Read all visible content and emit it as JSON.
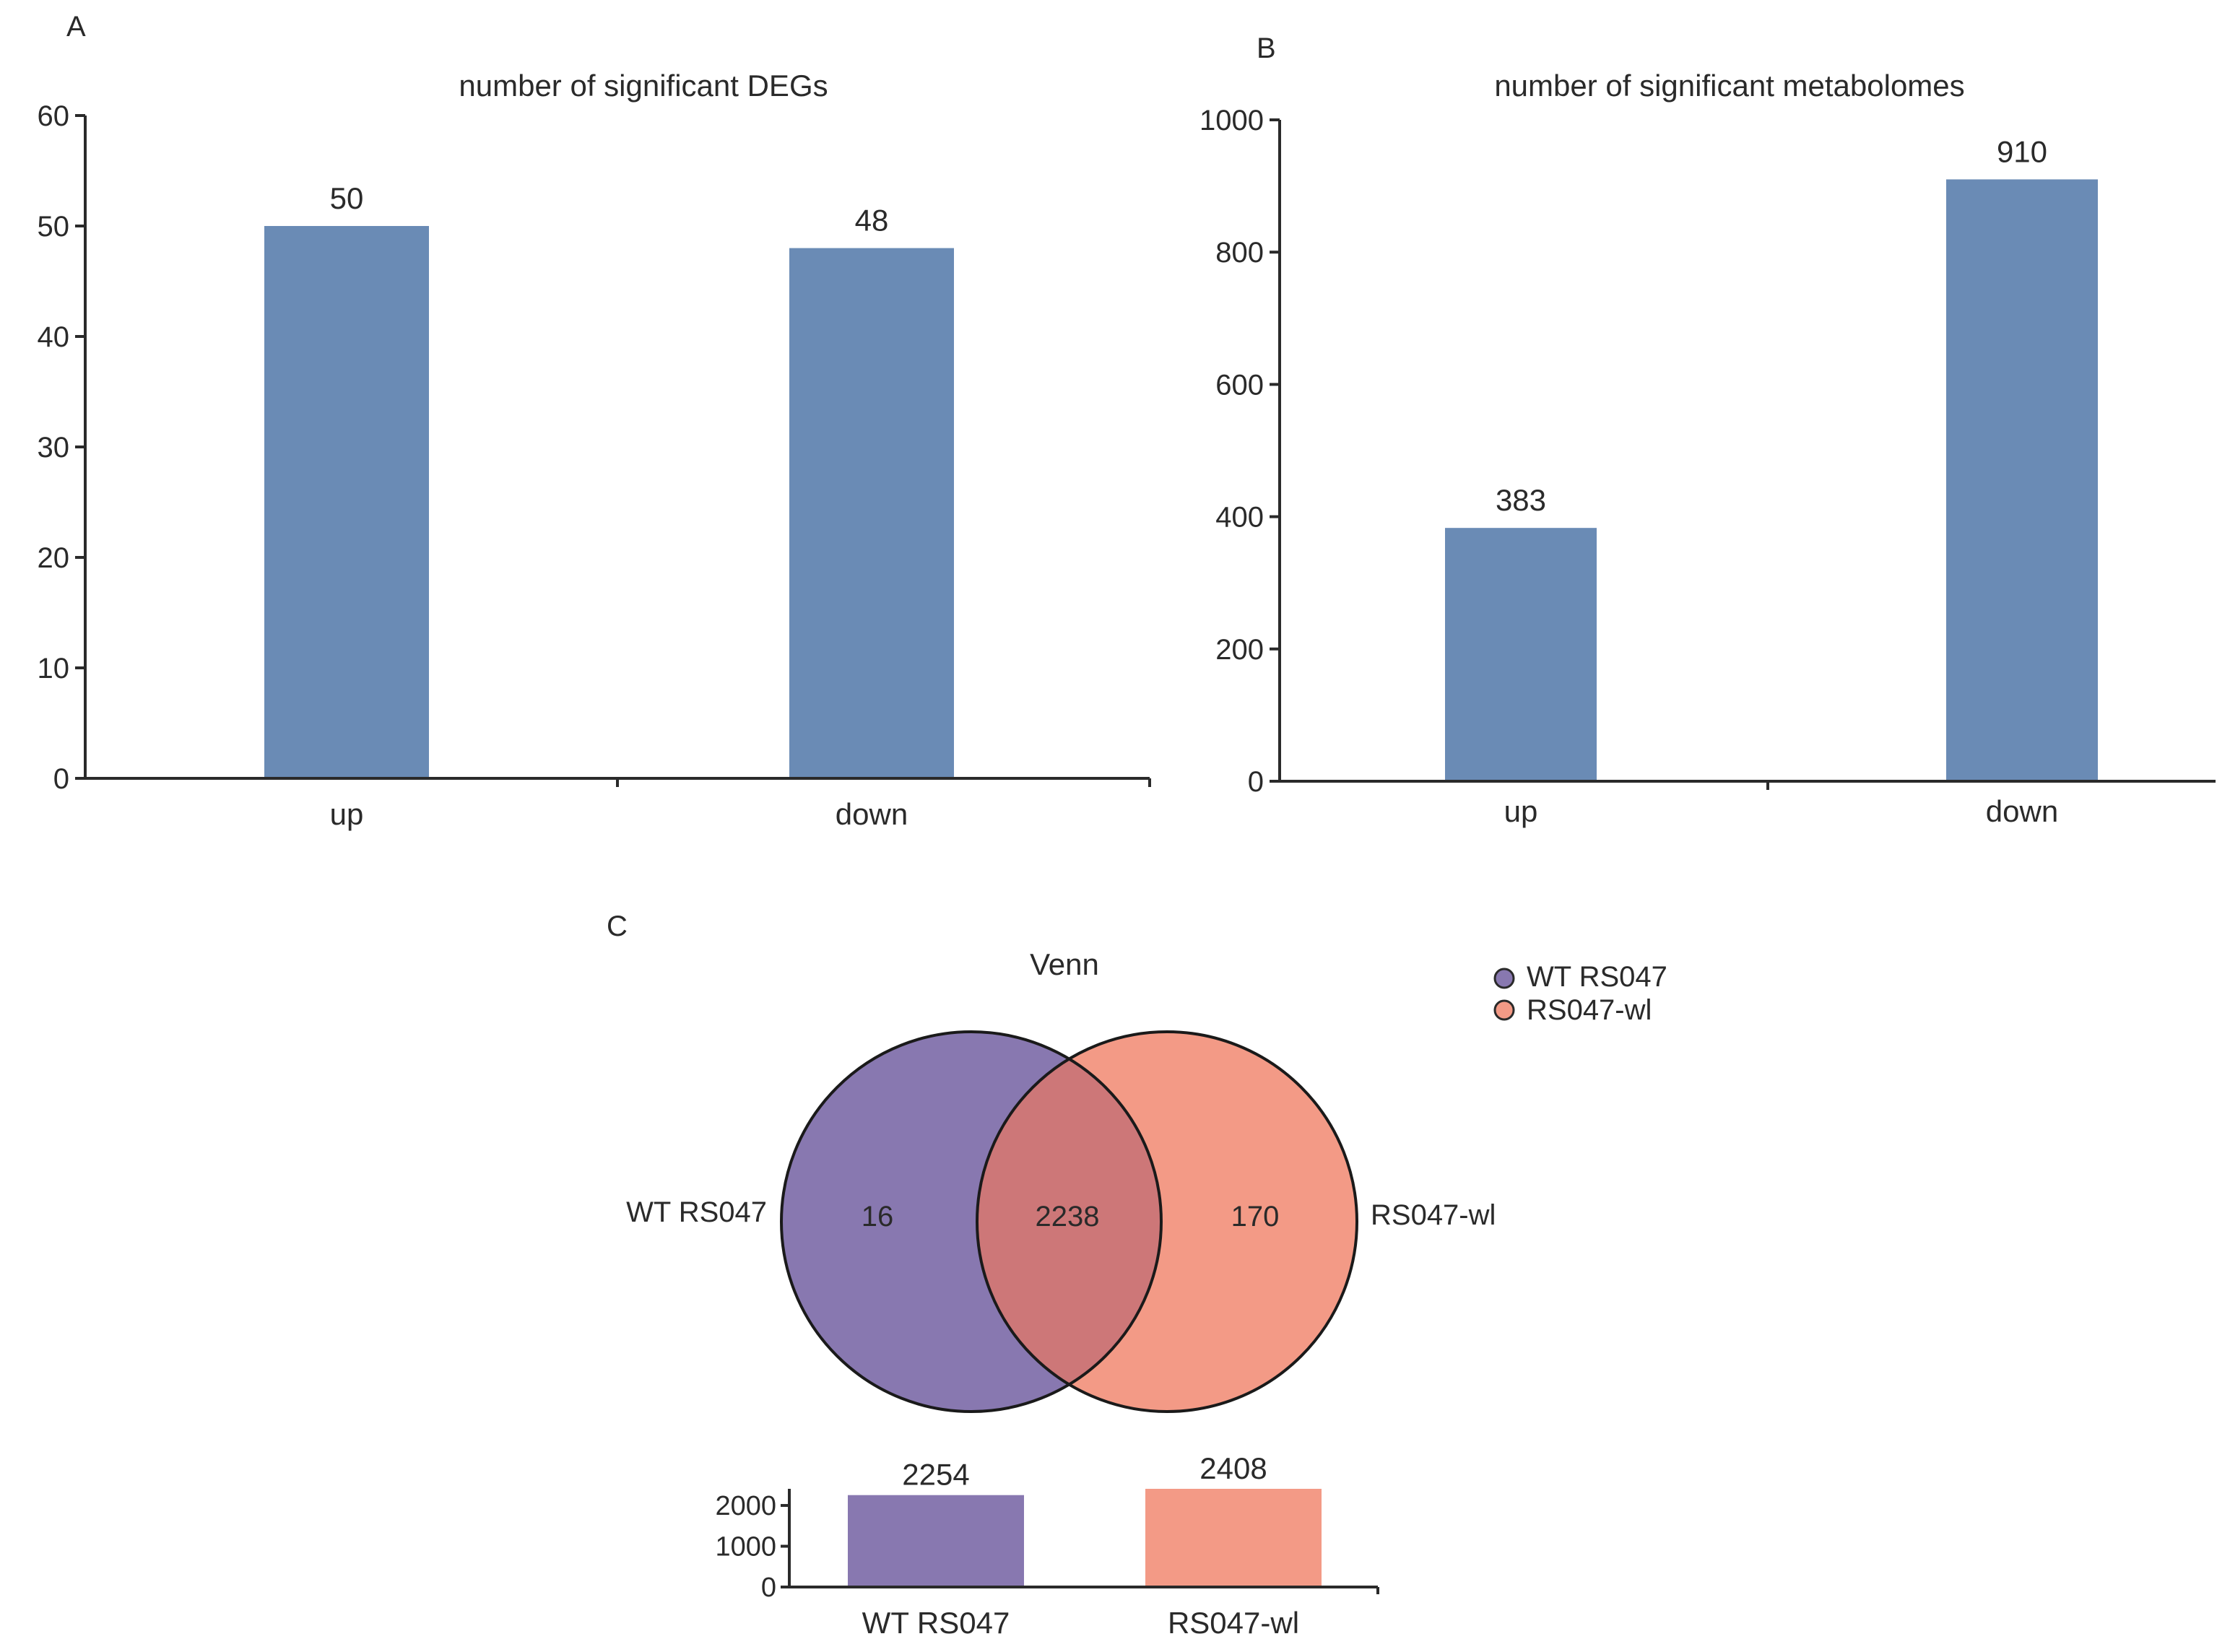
{
  "chart_data": [
    {
      "panel": "A",
      "type": "bar",
      "title": "number of significant DEGs",
      "categories": [
        "up",
        "down"
      ],
      "values": [
        50,
        48
      ],
      "data_labels": [
        "50",
        "48"
      ],
      "ylim": [
        0,
        60
      ],
      "yticks": [
        0,
        10,
        20,
        30,
        40,
        50,
        60
      ],
      "xlabel": "",
      "ylabel": "",
      "color": "#6a8bb5",
      "grid": false
    },
    {
      "panel": "B",
      "type": "bar",
      "title": "number of significant metabolomes",
      "categories": [
        "up",
        "down"
      ],
      "values": [
        383,
        910
      ],
      "data_labels": [
        "383",
        "910"
      ],
      "ylim": [
        0,
        1000
      ],
      "yticks": [
        0,
        200,
        400,
        600,
        800,
        1000
      ],
      "xlabel": "",
      "ylabel": "",
      "color": "#6a8bb5",
      "grid": false
    },
    {
      "panel": "C",
      "type": "venn",
      "title": "Venn",
      "sets": [
        {
          "name": "WT RS047",
          "color": "#8878b0",
          "only": "16",
          "total": 2254,
          "total_label": "2254"
        },
        {
          "name": "RS047-wl",
          "color": "#f39a86",
          "only": "170",
          "total": 2408,
          "total_label": "2408"
        }
      ],
      "intersection": "2238",
      "intersection_color": "#cd7778",
      "totals_bar": {
        "type": "bar",
        "categories": [
          "WT RS047",
          "RS047-wl"
        ],
        "values": [
          2254,
          2408
        ],
        "ylim": [
          0,
          2408
        ],
        "yticks": [
          0,
          1000,
          2000
        ],
        "ytick_labels": [
          "0",
          "1000",
          "2000"
        ]
      },
      "legend": [
        "WT RS047",
        "RS047-wl"
      ]
    }
  ]
}
